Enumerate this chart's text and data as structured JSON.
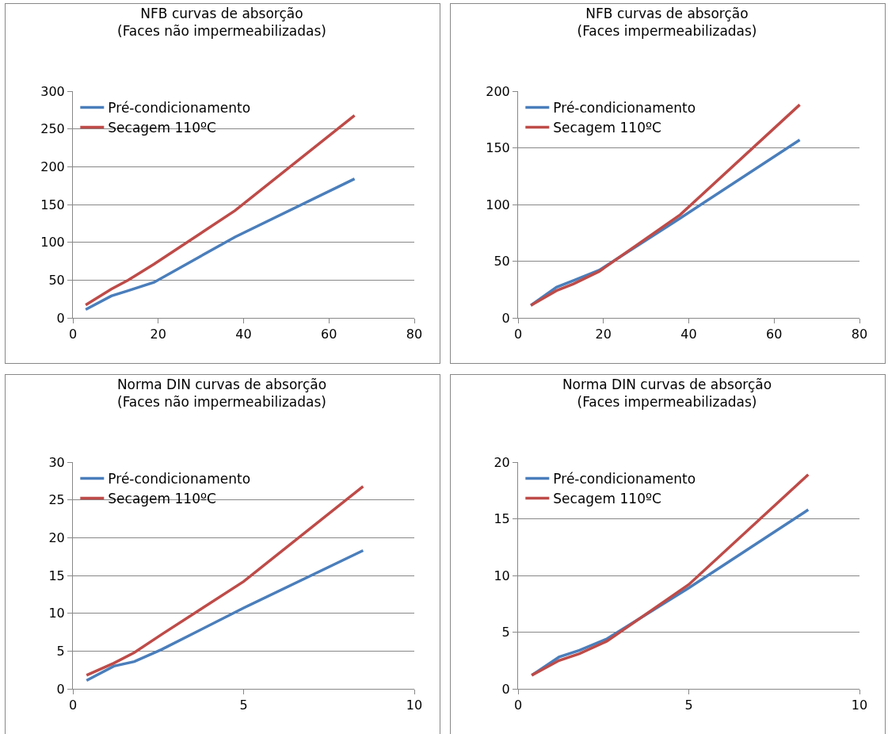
{
  "chart_data": [
    {
      "type": "line",
      "title": "NFB curvas de absorção\n(Faces não impermeabilizadas)",
      "xlim": [
        0,
        80
      ],
      "xticks": [
        0,
        20,
        40,
        60,
        80
      ],
      "ylim": [
        0,
        300
      ],
      "yticks": [
        0,
        50,
        100,
        150,
        200,
        250,
        300
      ],
      "grid": "y",
      "legend": "top left",
      "marker": "none",
      "line_style": "solid",
      "series": [
        {
          "name": "Pré-condicionamento",
          "color": "#4a7ebb",
          "x": [
            3,
            9,
            13,
            19,
            38,
            66
          ],
          "values": [
            11,
            29,
            36,
            47,
            107,
            184
          ]
        },
        {
          "name": "Secagem 110ºC",
          "color": "#be4b48",
          "x": [
            3,
            9,
            13,
            19,
            38,
            66
          ],
          "values": [
            17,
            38,
            50,
            71,
            142,
            268
          ]
        }
      ]
    },
    {
      "type": "line",
      "title": "NFB curvas de absorção\n(Faces impermeabilizadas)",
      "xlim": [
        0,
        80
      ],
      "xticks": [
        0,
        20,
        40,
        60,
        80
      ],
      "ylim": [
        0,
        200
      ],
      "yticks": [
        0,
        50,
        100,
        150,
        200
      ],
      "grid": "y",
      "legend": "top left",
      "marker": "none",
      "line_style": "solid",
      "series": [
        {
          "name": "Pré-condicionamento",
          "color": "#4a7ebb",
          "x": [
            3,
            9,
            13,
            19,
            38,
            66
          ],
          "values": [
            11,
            27,
            33,
            42,
            88,
            157
          ]
        },
        {
          "name": "Secagem 110ºC",
          "color": "#be4b48",
          "x": [
            3,
            9,
            13,
            19,
            38,
            66
          ],
          "values": [
            11,
            24,
            30,
            41,
            91,
            188
          ]
        }
      ]
    },
    {
      "type": "line",
      "title": "Norma DIN curvas de absorção\n(Faces não impermeabilizadas)",
      "xlim": [
        0,
        10
      ],
      "xticks": [
        0,
        5,
        10
      ],
      "ylim": [
        0,
        30
      ],
      "yticks": [
        0,
        5,
        10,
        15,
        20,
        25,
        30
      ],
      "grid": "y",
      "legend": "top left",
      "marker": "none",
      "line_style": "solid",
      "series": [
        {
          "name": "Pré-condicionamento",
          "color": "#4a7ebb",
          "x": [
            0.4,
            1.2,
            1.8,
            2.6,
            5,
            8.5
          ],
          "values": [
            1.1,
            3,
            3.6,
            5.2,
            10.7,
            18.3
          ]
        },
        {
          "name": "Secagem 110ºC",
          "color": "#be4b48",
          "x": [
            0.4,
            1.2,
            1.8,
            2.6,
            5,
            8.5
          ],
          "values": [
            1.8,
            3.4,
            4.8,
            7.2,
            14.2,
            26.8
          ]
        }
      ]
    },
    {
      "type": "line",
      "title": "Norma DIN curvas de absorção\n(Faces impermeabilizadas)",
      "xlim": [
        0,
        10
      ],
      "xticks": [
        0,
        5,
        10
      ],
      "ylim": [
        0,
        20
      ],
      "yticks": [
        0,
        5,
        10,
        15,
        20
      ],
      "grid": "y",
      "legend": "top left",
      "marker": "none",
      "line_style": "solid",
      "series": [
        {
          "name": "Pré-condicionamento",
          "color": "#4a7ebb",
          "x": [
            0.4,
            1.2,
            1.8,
            2.6,
            5,
            8.5
          ],
          "values": [
            1.2,
            2.8,
            3.4,
            4.4,
            8.9,
            15.8
          ]
        },
        {
          "name": "Secagem 110ºC",
          "color": "#be4b48",
          "x": [
            0.4,
            1.2,
            1.8,
            2.6,
            5,
            8.5
          ],
          "values": [
            1.2,
            2.5,
            3.1,
            4.2,
            9.2,
            18.9
          ]
        }
      ]
    }
  ]
}
